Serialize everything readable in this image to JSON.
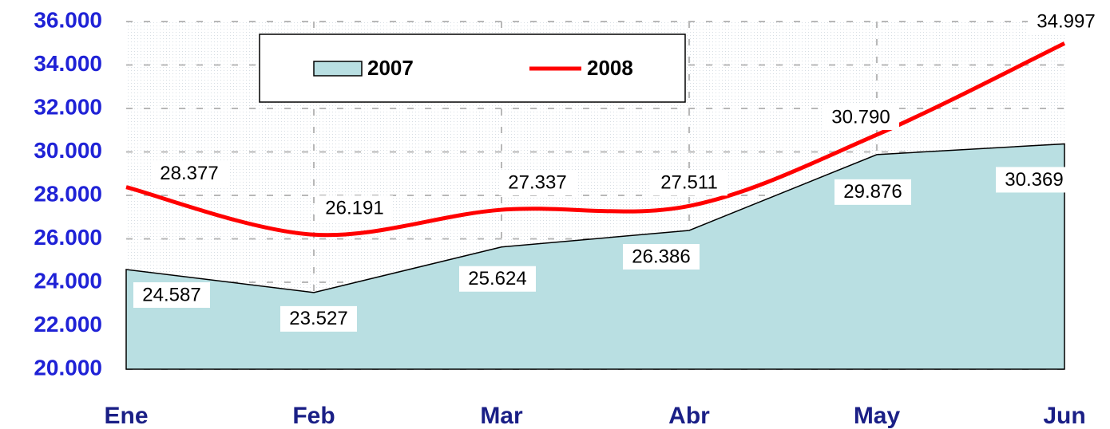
{
  "chart_data": {
    "type": "area-line",
    "categories": [
      "Ene",
      "Feb",
      "Mar",
      "Abr",
      "May",
      "Jun"
    ],
    "series": [
      {
        "name": "2007",
        "type": "area",
        "color": "#b9dfe2",
        "values": [
          24587,
          23527,
          25624,
          26386,
          29876,
          30369
        ],
        "value_labels": [
          "24.587",
          "23.527",
          "25.624",
          "26.386",
          "29.876",
          "30.369"
        ]
      },
      {
        "name": "2008",
        "type": "line",
        "color": "#ff0000",
        "values": [
          28377,
          26191,
          27337,
          27511,
          30790,
          34997
        ],
        "value_labels": [
          "28.377",
          "26.191",
          "27.337",
          "27.511",
          "30.790",
          "34.997"
        ]
      }
    ],
    "ylim": [
      20000,
      36000
    ],
    "yticks": [
      {
        "value": 20000,
        "label": "20.000"
      },
      {
        "value": 22000,
        "label": "22.000"
      },
      {
        "value": 24000,
        "label": "24.000"
      },
      {
        "value": 26000,
        "label": "26.000"
      },
      {
        "value": 28000,
        "label": "28.000"
      },
      {
        "value": 30000,
        "label": "30.000"
      },
      {
        "value": 32000,
        "label": "32.000"
      },
      {
        "value": 34000,
        "label": "34.000"
      },
      {
        "value": 36000,
        "label": "36.000"
      }
    ],
    "grid": true,
    "legend": "top"
  }
}
